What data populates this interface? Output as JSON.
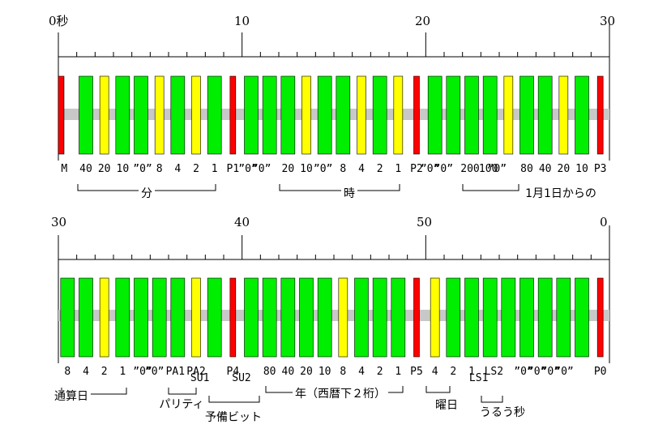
{
  "colors": {
    "M": "#ff0000",
    "P": "#ff0000",
    "one": "#00ee00",
    "zero": "#ffff00",
    "guide": "#c8c8c8",
    "line": "#000000"
  },
  "rows": [
    {
      "tick_labels": [
        "0秒",
        "10",
        "20",
        "30"
      ],
      "bits": [
        {
          "label": "M",
          "type": "M"
        },
        {
          "label": "40",
          "type": "one"
        },
        {
          "label": "20",
          "type": "zero"
        },
        {
          "label": "10",
          "type": "one"
        },
        {
          "label": "”0”",
          "type": "one"
        },
        {
          "label": "8",
          "type": "zero"
        },
        {
          "label": "4",
          "type": "one"
        },
        {
          "label": "2",
          "type": "zero"
        },
        {
          "label": "1",
          "type": "one"
        },
        {
          "label": "P1",
          "type": "P"
        },
        {
          "label": "”0”",
          "type": "one"
        },
        {
          "label": "”0”",
          "type": "one"
        },
        {
          "label": "20",
          "type": "one"
        },
        {
          "label": "10",
          "type": "zero"
        },
        {
          "label": "”0”",
          "type": "one"
        },
        {
          "label": "8",
          "type": "one"
        },
        {
          "label": "4",
          "type": "zero"
        },
        {
          "label": "2",
          "type": "one"
        },
        {
          "label": "1",
          "type": "zero"
        },
        {
          "label": "P2",
          "type": "P"
        },
        {
          "label": "”0”",
          "type": "one"
        },
        {
          "label": "”0”",
          "type": "one"
        },
        {
          "label": "200",
          "type": "one"
        },
        {
          "label": "100",
          "type": "one"
        },
        {
          "label": "”0”",
          "type": "zero"
        },
        {
          "label": "80",
          "type": "one"
        },
        {
          "label": "40",
          "type": "one"
        },
        {
          "label": "20",
          "type": "zero"
        },
        {
          "label": "10",
          "type": "one"
        },
        {
          "label": "P3",
          "type": "P"
        }
      ],
      "groups": [
        {
          "label": "分"
        },
        {
          "label": "時"
        },
        {
          "label": "1月1日からの"
        }
      ]
    },
    {
      "tick_labels": [
        "30",
        "40",
        "50",
        "0"
      ],
      "bits": [
        {
          "label": "8",
          "type": "one"
        },
        {
          "label": "4",
          "type": "one"
        },
        {
          "label": "2",
          "type": "zero"
        },
        {
          "label": "1",
          "type": "one"
        },
        {
          "label": "”0”",
          "type": "one"
        },
        {
          "label": "”0”",
          "type": "one"
        },
        {
          "label": "PA1",
          "type": "one"
        },
        {
          "label": "PA2",
          "type": "zero"
        },
        {
          "label": "SU1",
          "type": "one"
        },
        {
          "label": "P4",
          "type": "P"
        },
        {
          "label": "SU2",
          "type": "one"
        },
        {
          "label": "80",
          "type": "one"
        },
        {
          "label": "40",
          "type": "one"
        },
        {
          "label": "20",
          "type": "one"
        },
        {
          "label": "10",
          "type": "one"
        },
        {
          "label": "8",
          "type": "zero"
        },
        {
          "label": "4",
          "type": "one"
        },
        {
          "label": "2",
          "type": "one"
        },
        {
          "label": "1",
          "type": "one"
        },
        {
          "label": "P5",
          "type": "P"
        },
        {
          "label": "4",
          "type": "zero"
        },
        {
          "label": "2",
          "type": "one"
        },
        {
          "label": "1",
          "type": "one"
        },
        {
          "label": "LS1",
          "type": "one"
        },
        {
          "label": "LS2",
          "type": "one"
        },
        {
          "label": "”0”",
          "type": "one"
        },
        {
          "label": "”0”",
          "type": "one"
        },
        {
          "label": "”0”",
          "type": "one"
        },
        {
          "label": "”0”",
          "type": "one"
        },
        {
          "label": "P0",
          "type": "P"
        }
      ],
      "groups": [
        {
          "label": "通算日"
        },
        {
          "label": "パリティ"
        },
        {
          "label": "予備ビット"
        },
        {
          "label": "年（西暦下２桁）"
        },
        {
          "label": "曜日"
        },
        {
          "label": "うるう秒"
        }
      ]
    }
  ]
}
